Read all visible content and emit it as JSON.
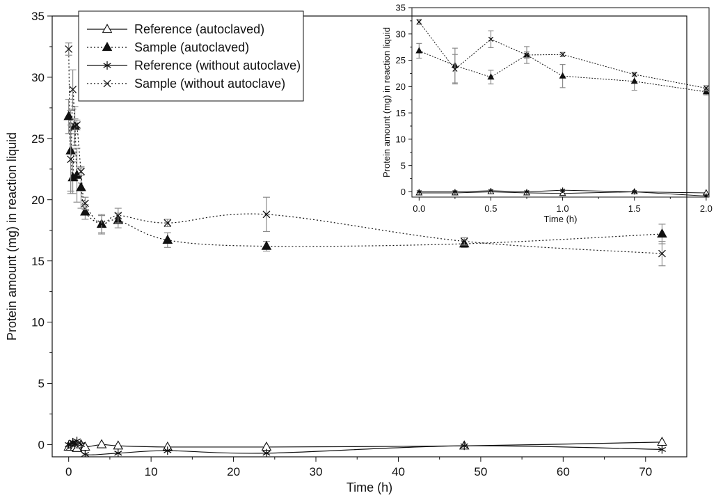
{
  "chart_data": [
    {
      "type": "line",
      "xlabel": "Time (h)",
      "ylabel": "Protein amount (mg) in reaction liquid",
      "xlim": [
        -2,
        75
      ],
      "ylim": [
        -1,
        35
      ],
      "x_ticks": [
        "0",
        "10",
        "20",
        "30",
        "40",
        "50",
        "60",
        "70"
      ],
      "y_ticks": [
        "0",
        "5",
        "10",
        "15",
        "20",
        "25",
        "30",
        "35"
      ],
      "smooth": true,
      "grid": false,
      "legend": "top-left",
      "series": [
        {
          "name": "Reference (autoclaved)",
          "line": "solid",
          "marker": "open-triangle",
          "x": [
            0,
            0.25,
            0.5,
            0.75,
            1,
            1.5,
            2,
            4,
            6,
            12,
            24,
            48,
            72
          ],
          "y": [
            -0.2,
            -0.2,
            0,
            -0.2,
            -0.3,
            0,
            -0.2,
            0,
            -0.1,
            -0.2,
            -0.2,
            -0.1,
            0.2
          ],
          "err": [
            0,
            0,
            0,
            0,
            0,
            0,
            0,
            0,
            0,
            0,
            0,
            0,
            0
          ]
        },
        {
          "name": "Sample (autoclaved)",
          "line": "dotted",
          "marker": "filled-triangle",
          "x": [
            0,
            0.25,
            0.5,
            0.75,
            1,
            1.5,
            2,
            4,
            6,
            12,
            24,
            48,
            72
          ],
          "y": [
            26.8,
            24.0,
            21.8,
            26.0,
            22.0,
            21.0,
            19.0,
            18.0,
            18.3,
            16.7,
            16.2,
            16.4,
            17.2
          ],
          "err": [
            1.4,
            3.3,
            1.3,
            1.6,
            2.2,
            1.7,
            0.6,
            0.8,
            0.6,
            0.6,
            0.4,
            0.3,
            0.8
          ]
        },
        {
          "name": "Reference (without autoclave)",
          "line": "solid",
          "marker": "asterisk",
          "x": [
            0,
            0.25,
            0.5,
            0.75,
            1,
            1.5,
            2,
            6,
            12,
            24,
            48,
            72
          ],
          "y": [
            0,
            0,
            0.2,
            0,
            0.3,
            0,
            -0.8,
            -0.7,
            -0.5,
            -0.7,
            -0.1,
            -0.4
          ],
          "err": [
            0,
            0,
            0,
            0,
            0,
            0,
            0,
            0,
            0,
            0,
            0,
            0
          ]
        },
        {
          "name": "Sample (without autoclave)",
          "line": "dotted",
          "marker": "cross",
          "x": [
            0,
            0.25,
            0.5,
            0.75,
            1,
            1.5,
            2,
            4,
            6,
            12,
            24,
            48,
            72
          ],
          "y": [
            32.3,
            23.3,
            29.0,
            26.0,
            26.1,
            22.3,
            19.7,
            18.0,
            18.7,
            18.1,
            18.8,
            16.6,
            15.6
          ],
          "err": [
            0.5,
            2.8,
            1.6,
            0.6,
            0.4,
            0.3,
            0.5,
            0.7,
            0.6,
            0.3,
            1.4,
            0.3,
            1.0
          ]
        }
      ]
    },
    {
      "type": "line",
      "role": "inset",
      "xlabel": "Time (h)",
      "ylabel": "Protein amount (mg) in reaction liquid",
      "xlim": [
        -0.05,
        2.02
      ],
      "ylim": [
        -1,
        35
      ],
      "x_ticks": [
        "0.0",
        "0.5",
        "1.0",
        "1.5",
        "2.0"
      ],
      "y_ticks": [
        "0",
        "5",
        "10",
        "15",
        "20",
        "25",
        "30",
        "35"
      ],
      "smooth": false,
      "grid": false,
      "series": [
        {
          "name": "Reference (autoclaved)",
          "line": "solid",
          "marker": "open-triangle",
          "x": [
            0,
            0.25,
            0.5,
            0.75,
            1,
            1.5,
            2
          ],
          "y": [
            -0.2,
            -0.2,
            0,
            -0.2,
            -0.3,
            0,
            -0.2
          ],
          "err": [
            0,
            0,
            0,
            0,
            0,
            0,
            0
          ]
        },
        {
          "name": "Sample (autoclaved)",
          "line": "dotted",
          "marker": "filled-triangle",
          "x": [
            0,
            0.25,
            0.5,
            0.75,
            1,
            1.5,
            2
          ],
          "y": [
            26.8,
            24.0,
            21.8,
            26.0,
            22.0,
            21.0,
            19.0
          ],
          "err": [
            1.4,
            3.3,
            1.3,
            1.6,
            2.2,
            1.7,
            0.6
          ]
        },
        {
          "name": "Reference (without autoclave)",
          "line": "solid",
          "marker": "asterisk",
          "x": [
            0,
            0.25,
            0.5,
            0.75,
            1,
            1.5,
            2
          ],
          "y": [
            0,
            0,
            0.2,
            0,
            0.3,
            0,
            -0.8
          ],
          "err": [
            0,
            0,
            0,
            0,
            0,
            0,
            0
          ]
        },
        {
          "name": "Sample (without autoclave)",
          "line": "dotted",
          "marker": "cross",
          "x": [
            0,
            0.25,
            0.5,
            0.75,
            1,
            1.5,
            2
          ],
          "y": [
            32.3,
            23.3,
            29.0,
            26.0,
            26.1,
            22.3,
            19.7
          ],
          "err": [
            0.5,
            2.8,
            1.6,
            0.6,
            0.4,
            0.3,
            0.5
          ]
        }
      ]
    }
  ],
  "colors": {
    "line": "#111111",
    "error_bar": "#8c8c8c",
    "background": "#ffffff"
  }
}
